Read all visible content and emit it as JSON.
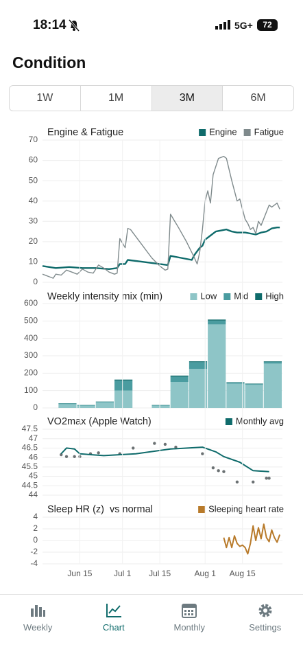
{
  "status_bar": {
    "time": "18:14",
    "network": "5G+",
    "battery": "72"
  },
  "header": {
    "title": "Condition"
  },
  "segments": {
    "items": [
      "1W",
      "1M",
      "3M",
      "6M"
    ],
    "selected_index": 2
  },
  "chart_data": [
    {
      "type": "line",
      "title": "Engine & Fatigue",
      "xlim": [
        "06-01",
        "08-30"
      ],
      "ylim": [
        0,
        70
      ],
      "yticks": [
        0,
        10,
        20,
        30,
        40,
        50,
        60,
        70
      ],
      "grid": true,
      "series": [
        {
          "name": "Engine",
          "color": "#0f6b6b",
          "x": [
            "06-01",
            "06-06",
            "06-11",
            "06-16",
            "06-21",
            "06-26",
            "06-29",
            "06-30",
            "07-02",
            "07-03",
            "07-09",
            "07-15",
            "07-18",
            "07-19",
            "07-23",
            "07-27",
            "07-28",
            "07-30",
            "07-31",
            "08-01",
            "08-03",
            "08-05",
            "08-07",
            "08-09",
            "08-11",
            "08-13",
            "08-16",
            "08-18",
            "08-20",
            "08-22",
            "08-24",
            "08-26",
            "08-28",
            "08-29"
          ],
          "values": [
            8,
            7,
            7.5,
            7,
            7,
            6.5,
            7,
            9,
            9,
            11,
            10,
            9,
            8.5,
            13,
            12,
            11,
            13.5,
            17,
            18,
            21,
            23,
            25,
            25.5,
            26,
            25,
            24.5,
            24.5,
            24,
            23.5,
            24.5,
            25,
            26.5,
            27,
            27
          ]
        },
        {
          "name": "Fatigue",
          "color": "#7f8a8c",
          "x": [
            "06-01",
            "06-04",
            "06-05",
            "06-06",
            "06-08",
            "06-10",
            "06-12",
            "06-14",
            "06-16",
            "06-18",
            "06-20",
            "06-22",
            "06-24",
            "06-26",
            "06-28",
            "06-29",
            "06-30",
            "07-02",
            "07-03",
            "07-04",
            "07-08",
            "07-12",
            "07-15",
            "07-17",
            "07-18",
            "07-19",
            "07-22",
            "07-25",
            "07-28",
            "07-29",
            "07-30",
            "07-31",
            "08-01",
            "08-02",
            "08-03",
            "08-04",
            "08-06",
            "08-08",
            "08-09",
            "08-11",
            "08-13",
            "08-14",
            "08-16",
            "08-17",
            "08-18",
            "08-19",
            "08-20",
            "08-21",
            "08-22",
            "08-25",
            "08-26",
            "08-28",
            "08-29"
          ],
          "values": [
            4,
            2.5,
            2,
            4,
            3.5,
            6,
            5,
            4,
            6.5,
            5,
            4.5,
            8.5,
            7,
            5,
            4,
            4.5,
            21.5,
            17,
            26.5,
            26,
            19,
            12,
            8,
            6,
            6.5,
            33.5,
            27,
            20,
            12,
            9,
            15,
            26,
            40,
            45,
            39,
            53,
            61,
            62,
            61,
            50,
            40,
            41,
            31,
            29,
            26,
            27,
            24,
            30,
            28,
            38,
            37,
            39,
            36
          ]
        }
      ]
    },
    {
      "type": "bar",
      "title": "Weekly intensity mix (min)",
      "stacked": true,
      "bar_days": 7,
      "xlim": [
        "06-01",
        "08-30"
      ],
      "ylim": [
        0,
        600
      ],
      "yticks": [
        0,
        100,
        200,
        300,
        400,
        500,
        600
      ],
      "grid": true,
      "x": [
        "06-07",
        "06-14",
        "06-21",
        "06-28",
        "07-12",
        "07-19",
        "07-26",
        "08-02",
        "08-09",
        "08-16",
        "08-23"
      ],
      "series": [
        {
          "name": "Low",
          "color": "#8ec5c7",
          "values": [
            22,
            13,
            32,
            100,
            13,
            150,
            225,
            480,
            140,
            133,
            255
          ]
        },
        {
          "name": "Mid",
          "color": "#4a9ca0",
          "values": [
            4,
            3,
            4,
            57,
            3,
            30,
            38,
            22,
            6,
            5,
            10
          ]
        },
        {
          "name": "High",
          "color": "#0f6b6b",
          "values": [
            1,
            1,
            1,
            6,
            1,
            6,
            5,
            6,
            2,
            2,
            3
          ]
        }
      ]
    },
    {
      "type": "line",
      "title": "VO2max (Apple Watch)",
      "xlim": [
        "06-01",
        "08-30"
      ],
      "ylim": [
        44,
        47.5
      ],
      "yticks": [
        44,
        44.5,
        45,
        45.5,
        46,
        46.5,
        47,
        47.5
      ],
      "grid": true,
      "points": {
        "color": "#6b7173",
        "x": [
          "06-08",
          "06-10",
          "06-13",
          "06-15",
          "06-19",
          "06-22",
          "06-30",
          "07-05",
          "07-13",
          "07-17",
          "07-21",
          "07-31",
          "08-04",
          "08-06",
          "08-08",
          "08-13",
          "08-19",
          "08-24",
          "08-25"
        ],
        "values": [
          46.15,
          46.05,
          46.05,
          46.05,
          46.2,
          46.25,
          46.2,
          46.5,
          46.75,
          46.7,
          46.55,
          46.2,
          45.45,
          45.3,
          45.25,
          44.7,
          44.7,
          44.9,
          44.9
        ]
      },
      "series": [
        {
          "name": "Monthly avg",
          "color": "#0f6b6b",
          "x": [
            "06-08",
            "06-10",
            "06-13",
            "06-15",
            "06-19",
            "06-24",
            "07-06",
            "07-19",
            "07-31",
            "08-05",
            "08-08",
            "08-14",
            "08-19",
            "08-25"
          ],
          "values": [
            46.2,
            46.5,
            46.45,
            46.2,
            46.15,
            46.1,
            46.2,
            46.45,
            46.55,
            46.3,
            46.05,
            45.75,
            45.3,
            45.25
          ]
        }
      ]
    },
    {
      "type": "line",
      "title": "Sleep HR (z)",
      "subtitle": "vs normal",
      "xlim": [
        "06-01",
        "08-30"
      ],
      "ylim": [
        -4,
        4
      ],
      "yticks": [
        -4,
        -2,
        0,
        2,
        4
      ],
      "grid": true,
      "xticks": [
        {
          "value": "06-15",
          "label": "Jun 15"
        },
        {
          "value": "07-01",
          "label": "Jul 1"
        },
        {
          "value": "07-15",
          "label": "Jul 15"
        },
        {
          "value": "08-01",
          "label": "Aug 1"
        },
        {
          "value": "08-15",
          "label": "Aug 15"
        }
      ],
      "series": [
        {
          "name": "Sleeping heart rate",
          "color": "#b87a2a",
          "x": [
            "08-08",
            "08-09",
            "08-10",
            "08-11",
            "08-12",
            "08-13",
            "08-14",
            "08-15",
            "08-16",
            "08-17",
            "08-18",
            "08-19",
            "08-20",
            "08-21",
            "08-22",
            "08-23",
            "08-24",
            "08-25",
            "08-26",
            "08-27",
            "08-28",
            "08-29"
          ],
          "values": [
            0.5,
            -1.2,
            0.5,
            -1.2,
            0.8,
            -0.5,
            -1.0,
            -0.8,
            -1.2,
            -2.3,
            -0.5,
            2.5,
            0,
            2.2,
            0.3,
            2.8,
            0.5,
            -0.2,
            1.8,
            0.5,
            -0.3,
            1.0
          ]
        }
      ]
    }
  ],
  "tab_bar": {
    "items": [
      "Weekly",
      "Chart",
      "Monthly",
      "Settings"
    ],
    "selected_index": 1
  }
}
